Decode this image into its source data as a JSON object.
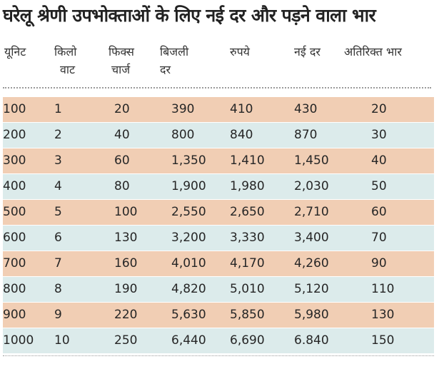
{
  "title": "घरेलू श्रेणी उपभोक्ताओं के लिए नई दर और पड़ने वाला भार",
  "colors": {
    "band_odd": "#f1ceb4",
    "band_even": "#dcebeb"
  },
  "columns": [
    {
      "line1": "यूनिट",
      "line2": ""
    },
    {
      "line1": "किलो",
      "line2": "वाट"
    },
    {
      "line1": "फिक्स",
      "line2": "चार्ज"
    },
    {
      "line1": "बिजली",
      "line2": "दर"
    },
    {
      "line1": "रुपये",
      "line2": ""
    },
    {
      "line1": "नई दर",
      "line2": ""
    },
    {
      "line1": "अतिरिक्त भार",
      "line2": ""
    }
  ],
  "rows": [
    [
      "100",
      "1",
      "20",
      "390",
      "410",
      "430",
      "20"
    ],
    [
      "200",
      "2",
      "40",
      "800",
      "840",
      "870",
      "30"
    ],
    [
      "300",
      "3",
      "60",
      "1,350",
      "1,410",
      "1,450",
      "40"
    ],
    [
      "400",
      "4",
      "80",
      "1,900",
      "1,980",
      "2,030",
      "50"
    ],
    [
      "500",
      "5",
      "100",
      "2,550",
      "2,650",
      "2,710",
      "60"
    ],
    [
      "600",
      "6",
      "130",
      "3,200",
      "3,330",
      "3,400",
      "70"
    ],
    [
      "700",
      "7",
      "160",
      "4,010",
      "4,170",
      "4,260",
      "90"
    ],
    [
      "800",
      "8",
      "190",
      "4,820",
      "5,010",
      "5,120",
      "110"
    ],
    [
      "900",
      "9",
      "220",
      "5,630",
      "5,850",
      "5,980",
      "130"
    ],
    [
      "1000",
      "10",
      "250",
      "6,440",
      "6,690",
      "6.840",
      "150"
    ]
  ]
}
